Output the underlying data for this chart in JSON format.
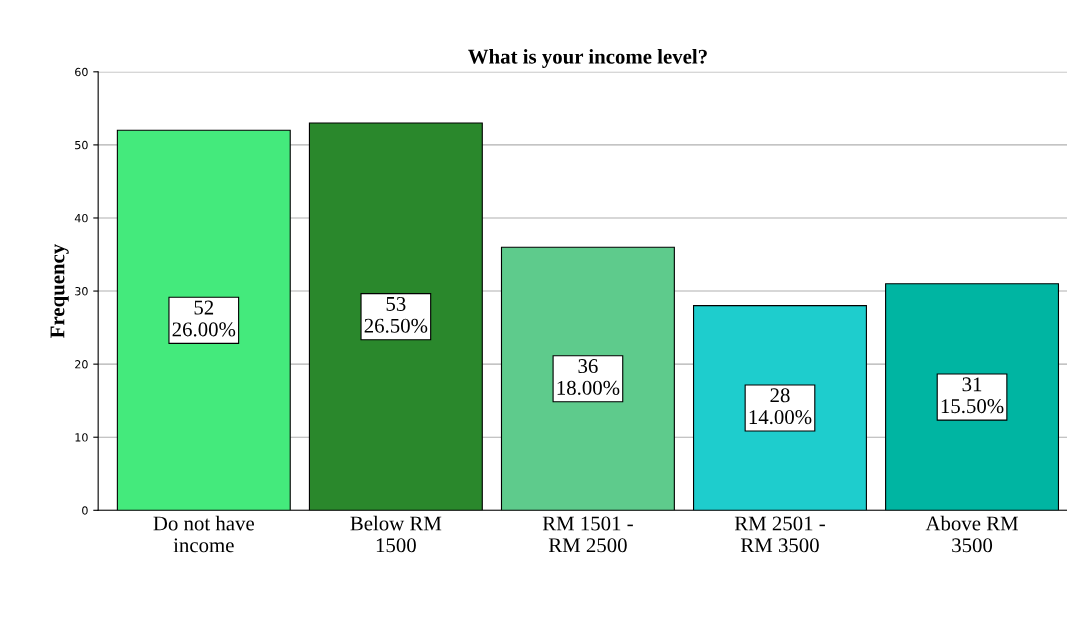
{
  "chart_data": {
    "type": "bar",
    "title": "What is your income level?",
    "ylabel": "Frequency",
    "categories": [
      "Do not have\nincome",
      "Below RM\n1500",
      "RM 1501 -\nRM 2500",
      "RM 2501 -\nRM 3500",
      "Above RM\n3500"
    ],
    "values": [
      52,
      53,
      36,
      28,
      31
    ],
    "colors": [
      "#44ea7c",
      "#2a882c",
      "#5ecb8c",
      "#1ecdcd",
      "#00b5a2"
    ],
    "value_labels": [
      "52\n26.00%",
      "53\n26.50%",
      "36\n18.00%",
      "28\n14.00%",
      "31\n15.50%"
    ],
    "ylim": [
      0,
      60
    ],
    "yticks": [
      0,
      10,
      20,
      30,
      40,
      50,
      60
    ],
    "grid": "y"
  }
}
